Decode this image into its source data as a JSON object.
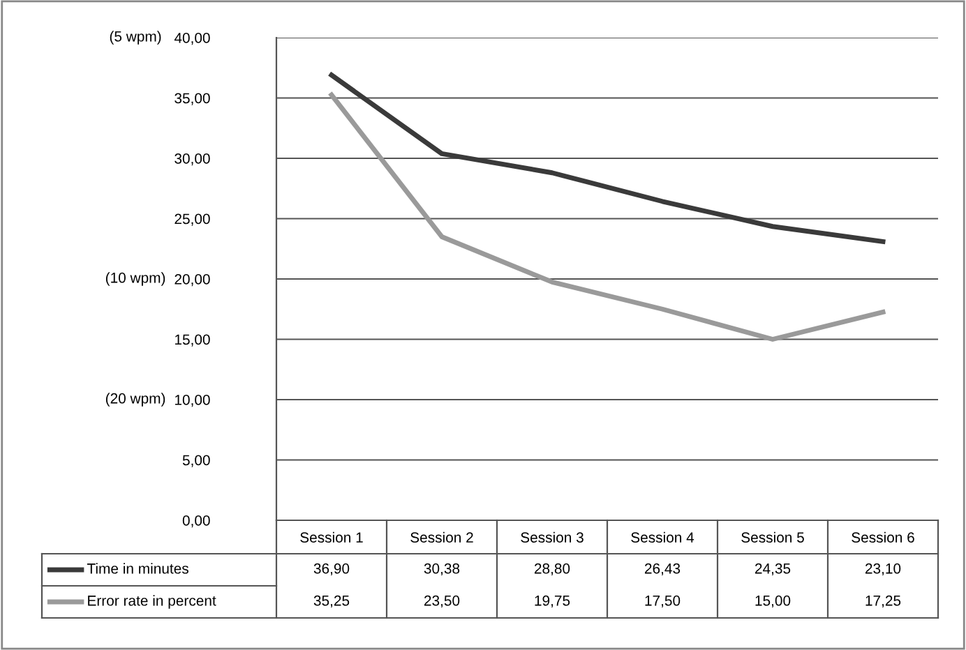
{
  "chart_data": {
    "type": "line",
    "categories": [
      "Session 1",
      "Session 2",
      "Session 3",
      "Session 4",
      "Session 5",
      "Session 6"
    ],
    "series": [
      {
        "name": "Time in minutes",
        "color": "#3a3a3a",
        "values": [
          36.9,
          30.38,
          28.8,
          26.43,
          24.35,
          23.1
        ],
        "value_labels": [
          "36,90",
          "30,38",
          "28,80",
          "26,43",
          "24,35",
          "23,10"
        ]
      },
      {
        "name": "Error rate in percent",
        "color": "#9a9a9a",
        "values": [
          35.25,
          23.5,
          19.75,
          17.5,
          15.0,
          17.25
        ],
        "value_labels": [
          "35,25",
          "23,50",
          "19,75",
          "17,50",
          "15,00",
          "17,25"
        ]
      }
    ],
    "ylim": [
      0,
      40
    ],
    "yticks": [
      {
        "value": 0,
        "label": "0,00"
      },
      {
        "value": 5,
        "label": "5,00"
      },
      {
        "value": 10,
        "label": "10,00"
      },
      {
        "value": 15,
        "label": "15,00"
      },
      {
        "value": 20,
        "label": "20,00"
      },
      {
        "value": 25,
        "label": "25,00"
      },
      {
        "value": 30,
        "label": "30,00"
      },
      {
        "value": 35,
        "label": "35,00"
      },
      {
        "value": 40,
        "label": "40,00"
      }
    ],
    "grid": "y",
    "marker": "none",
    "line_style": "solid",
    "legend": "bottom",
    "annotations": [
      "(5 wpm)",
      "(10 wpm)",
      "(20 wpm)"
    ]
  }
}
